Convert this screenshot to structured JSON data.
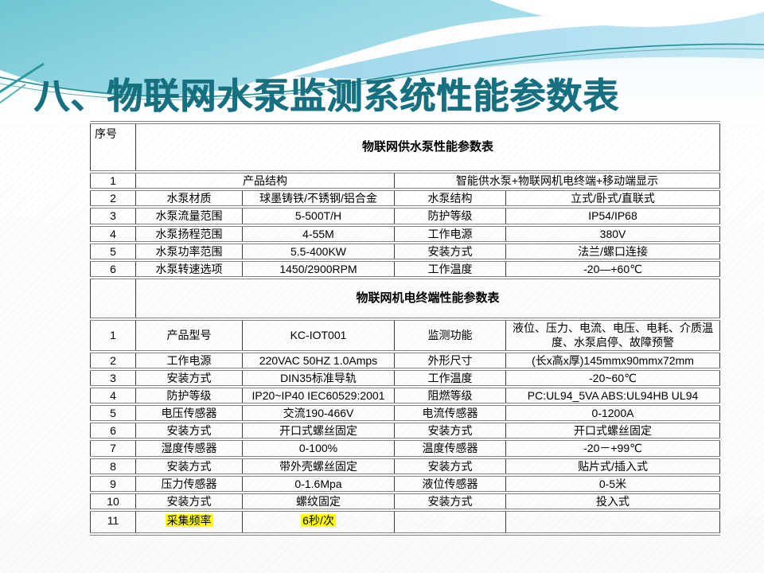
{
  "slide": {
    "title": "八、物联网水泵监测系统性能参数表",
    "title_color": "#17707f",
    "highlight_color": "#ffff00",
    "wave_colors": {
      "cyan_band_left": "#6fc6d2",
      "cyan_band_right": "#b7e5f1",
      "light_blue_band": "#a6daee",
      "thin_line_dark_teal": "#1f8f93",
      "thin_line_light_teal": "#5fb4ae"
    }
  },
  "table": {
    "seq_header": "序号",
    "sections": [
      {
        "header": "物联网供水泵性能参数表",
        "rows": [
          {
            "no": "1",
            "cells": [
              {
                "text": "产品结构",
                "span": 2
              },
              {
                "text": "智能供水泵+物联网机电终端+移动端显示",
                "span": 2
              }
            ]
          },
          {
            "no": "2",
            "cells": [
              {
                "text": "水泵材质"
              },
              {
                "text": "球墨铸铁/不锈钢/铝合金"
              },
              {
                "text": "水泵结构"
              },
              {
                "text": "立式/卧式/直联式"
              }
            ]
          },
          {
            "no": "3",
            "cells": [
              {
                "text": "水泵流量范围"
              },
              {
                "text": "5-500T/H"
              },
              {
                "text": "防护等级"
              },
              {
                "text": "IP54/IP68"
              }
            ]
          },
          {
            "no": "4",
            "cells": [
              {
                "text": "水泵扬程范围"
              },
              {
                "text": "4-55M"
              },
              {
                "text": "工作电源"
              },
              {
                "text": "380V"
              }
            ]
          },
          {
            "no": "5",
            "cells": [
              {
                "text": "水泵功率范围"
              },
              {
                "text": "5.5-400KW"
              },
              {
                "text": "安装方式"
              },
              {
                "text": "法兰/螺口连接"
              }
            ]
          },
          {
            "no": "6",
            "cells": [
              {
                "text": "水泵转速选项"
              },
              {
                "text": "1450/2900RPM"
              },
              {
                "text": "工作温度"
              },
              {
                "text": "-20—+60℃"
              }
            ]
          }
        ]
      },
      {
        "header": "物联网机电终端性能参数表",
        "rows": [
          {
            "no": "1",
            "cells": [
              {
                "text": "产品型号"
              },
              {
                "text": "KC-IOT001"
              },
              {
                "text": "监测功能"
              },
              {
                "text": "液位、压力、电流、电压、电耗、介质温度、水泵启停、故障预警"
              }
            ]
          },
          {
            "no": "2",
            "cells": [
              {
                "text": "工作电源"
              },
              {
                "text": "220VAC 50HZ 1.0Amps"
              },
              {
                "text": "外形尺寸"
              },
              {
                "text": "(长x高x厚)145mmx90mmx72mm"
              }
            ]
          },
          {
            "no": "3",
            "cells": [
              {
                "text": "安装方式"
              },
              {
                "text": "DIN35标准导轨"
              },
              {
                "text": "工作温度"
              },
              {
                "text": "-20~60℃"
              }
            ]
          },
          {
            "no": "4",
            "cells": [
              {
                "text": "防护等级"
              },
              {
                "text": "IP20~IP40 IEC60529:2001"
              },
              {
                "text": "阻燃等级"
              },
              {
                "text": "PC:UL94_5VA ABS:UL94HB UL94"
              }
            ]
          },
          {
            "no": "5",
            "cells": [
              {
                "text": "电压传感器"
              },
              {
                "text": "交流190-466V"
              },
              {
                "text": "电流传感器"
              },
              {
                "text": "0-1200A"
              }
            ]
          },
          {
            "no": "6",
            "cells": [
              {
                "text": "安装方式"
              },
              {
                "text": "开口式螺丝固定"
              },
              {
                "text": "安装方式"
              },
              {
                "text": "开口式螺丝固定"
              }
            ]
          },
          {
            "no": "7",
            "cells": [
              {
                "text": "湿度传感器"
              },
              {
                "text": "0-100%"
              },
              {
                "text": "温度传感器"
              },
              {
                "text": "-20－+99℃"
              }
            ]
          },
          {
            "no": "8",
            "cells": [
              {
                "text": "安装方式"
              },
              {
                "text": "带外壳螺丝固定"
              },
              {
                "text": "安装方式"
              },
              {
                "text": "贴片式/插入式"
              }
            ]
          },
          {
            "no": "9",
            "cells": [
              {
                "text": "压力传感器"
              },
              {
                "text": "0-1.6Mpa"
              },
              {
                "text": "液位传感器"
              },
              {
                "text": "0-5米"
              }
            ]
          },
          {
            "no": "10",
            "cells": [
              {
                "text": "安装方式"
              },
              {
                "text": "螺纹固定"
              },
              {
                "text": "安装方式"
              },
              {
                "text": "投入式"
              }
            ]
          },
          {
            "no": "11",
            "cells": [
              {
                "text": "采集频率",
                "hl": true
              },
              {
                "text": "6秒/次",
                "hl": true
              },
              {
                "text": ""
              },
              {
                "text": ""
              }
            ]
          }
        ]
      }
    ]
  }
}
